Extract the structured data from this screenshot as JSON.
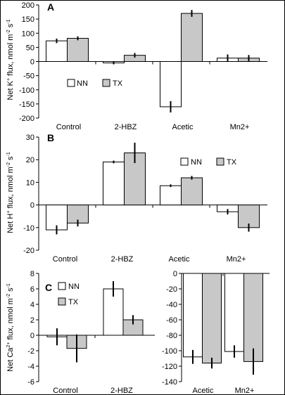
{
  "chart_data": [
    {
      "type": "bar",
      "panel_label": "A",
      "ylabel": "Net K+ flux, nmol m-2 s-1",
      "ylabel_parts": {
        "base": "Net K",
        "ion_sup": "+",
        "mid": " flux, nmol m",
        "unit_sup1": "-2",
        "gap": " s",
        "unit_sup2": "-1"
      },
      "categories": [
        "Control",
        "2-HBZ",
        "Acetic",
        "Mn2+"
      ],
      "ylim": [
        -200,
        200
      ],
      "yticks": [
        "-200",
        "-150",
        "-100",
        "-50",
        "0",
        "50",
        "100",
        "150",
        "200"
      ],
      "grid": false,
      "legend_placement": "lower-left",
      "series": [
        {
          "name": "NN",
          "color": "#ffffff",
          "values": [
            73,
            -5,
            -160,
            12
          ],
          "errors": [
            8,
            5,
            20,
            13
          ]
        },
        {
          "name": "TX",
          "color": "#c8c8c8",
          "values": [
            82,
            22,
            170,
            12
          ],
          "errors": [
            7,
            8,
            12,
            11
          ]
        }
      ]
    },
    {
      "type": "bar",
      "panel_label": "B",
      "ylabel": "Net H+ flux, nmol m-2 s-1",
      "ylabel_parts": {
        "base": "Net H",
        "ion_sup": "+",
        "mid": " flux, nmol m",
        "unit_sup1": "-2",
        "gap": " s",
        "unit_sup2": "-1"
      },
      "categories": [
        "Control",
        "2-HBZ",
        "Acetic",
        "Mn2+"
      ],
      "ylim": [
        -20,
        30
      ],
      "yticks": [
        "-20",
        "-10",
        "0",
        "10",
        "20",
        "30"
      ],
      "grid": false,
      "legend_placement": "top-right",
      "series": [
        {
          "name": "NN",
          "color": "#ffffff",
          "values": [
            -11,
            19,
            8.5,
            -3
          ],
          "errors": [
            2,
            0.6,
            0.6,
            1.2
          ]
        },
        {
          "name": "TX",
          "color": "#c8c8c8",
          "values": [
            -8,
            23,
            12,
            -10
          ],
          "errors": [
            1.5,
            4.5,
            0.8,
            1.8
          ]
        }
      ]
    },
    {
      "type": "bar",
      "panel_label": "C",
      "ylabel": "Net Ca2+ flux, nmol m-2 s-1",
      "ylabel_parts": {
        "base": "Net Ca",
        "ion_sup": "2+",
        "mid": " flux, nmol m",
        "unit_sup1": "-2",
        "gap": " s",
        "unit_sup2": "-1"
      },
      "categories": [
        "Control",
        "2-HBZ"
      ],
      "ylim": [
        -6,
        8
      ],
      "yticks": [
        "-6",
        "-4",
        "-2",
        "0",
        "2",
        "4",
        "6",
        "8"
      ],
      "grid": false,
      "legend_placement": "top-right",
      "series": [
        {
          "name": "NN",
          "color": "#ffffff",
          "values": [
            -0.2,
            6
          ],
          "errors": [
            1.1,
            1
          ]
        },
        {
          "name": "TX",
          "color": "#c8c8c8",
          "values": [
            -1.7,
            2
          ],
          "errors": [
            1.8,
            0.6
          ]
        }
      ]
    },
    {
      "type": "bar",
      "panel_label": "",
      "ylabel": "",
      "categories": [
        "Acetic",
        "Mn2+"
      ],
      "ylim": [
        -140,
        0
      ],
      "yticks": [
        "-140",
        "-120",
        "-100",
        "-80",
        "-60",
        "-40",
        "-20",
        "0"
      ],
      "grid": false,
      "legend_placement": "none",
      "series": [
        {
          "name": "NN",
          "color": "#ffffff",
          "values": [
            -108,
            -101
          ],
          "errors": [
            9,
            8
          ]
        },
        {
          "name": "TX",
          "color": "#c8c8c8",
          "values": [
            -116,
            -114
          ],
          "errors": [
            7,
            17
          ]
        }
      ]
    }
  ]
}
